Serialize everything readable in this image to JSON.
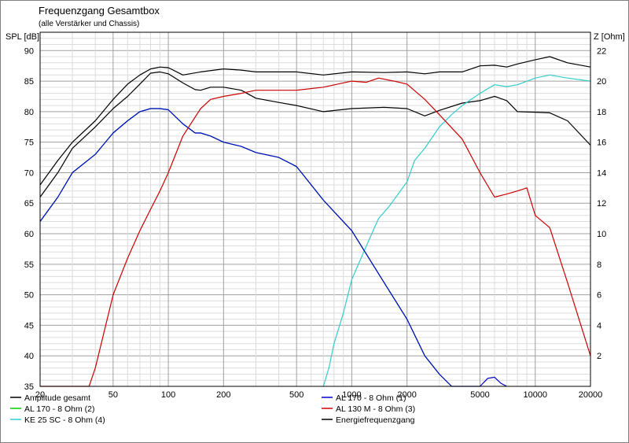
{
  "chart_data": {
    "type": "line",
    "title": "Frequenzgang Gesamtbox",
    "subtitle": "(alle Verstärker und Chassis)",
    "xscale": "log",
    "xlim": [
      20,
      20000
    ],
    "ylim_left": [
      35,
      93
    ],
    "ylim_right": [
      0,
      23.2
    ],
    "ylabel_left": "SPL [dB]",
    "ylabel_right": "Z [Ohm]",
    "grid": true,
    "legend_position": "bottom",
    "x_ticks": [
      "20",
      "50",
      "100",
      "200",
      "500",
      "1000",
      "2000",
      "5000",
      "10000",
      "20000"
    ],
    "x_tick_values": [
      20,
      50,
      100,
      200,
      500,
      1000,
      2000,
      5000,
      10000,
      20000
    ],
    "y_ticks_left": [
      35,
      40,
      45,
      50,
      55,
      60,
      65,
      70,
      75,
      80,
      85,
      90
    ],
    "y_ticks_right": [
      2,
      4,
      6,
      8,
      10,
      12,
      14,
      16,
      18,
      20,
      22
    ],
    "series": [
      {
        "name": "Amplitude gesamt",
        "color": "#000000",
        "side": "left",
        "x": [
          20,
          25,
          30,
          40,
          50,
          60,
          70,
          80,
          90,
          100,
          120,
          140,
          150,
          170,
          200,
          250,
          300,
          400,
          500,
          700,
          1000,
          1500,
          2000,
          2500,
          3000,
          4000,
          5000,
          6000,
          7000,
          8000,
          10000,
          12000,
          15000,
          20000
        ],
        "y": [
          66,
          70,
          74,
          77.5,
          80.5,
          82.5,
          84.5,
          86.3,
          86.5,
          86.2,
          84.7,
          83.6,
          83.5,
          84,
          84,
          83.5,
          82.2,
          81.5,
          81,
          80,
          80.5,
          80.7,
          80.5,
          79.3,
          80.2,
          81.4,
          81.8,
          82.5,
          81.8,
          80,
          79.9,
          79.8,
          78.5,
          74.5
        ]
      },
      {
        "name": "AL 170 - 8 Ohm (2)",
        "color": "#00cc00",
        "side": "left",
        "x": [
          20,
          25,
          30,
          40,
          50,
          60,
          70,
          80,
          90,
          100,
          120,
          140,
          150,
          170,
          200,
          250,
          300,
          400,
          500,
          700,
          1000,
          1500,
          2000,
          2500,
          3000,
          3500
        ],
        "y": [
          62,
          66,
          70,
          73,
          76.5,
          78.5,
          80,
          80.5,
          80.5,
          80.3,
          78,
          76.5,
          76.5,
          76,
          75,
          74.3,
          73.3,
          72.5,
          71,
          65.5,
          60.5,
          52,
          46,
          40,
          37,
          35
        ]
      },
      {
        "name": "KE 25 SC - 8 Ohm    (4)",
        "color": "#33cccc",
        "side": "left",
        "x": [
          700,
          750,
          800,
          900,
          1000,
          1200,
          1400,
          1600,
          2000,
          2200,
          2500,
          3000,
          3500,
          4000,
          5000,
          6000,
          7000,
          8000,
          10000,
          12000,
          15000,
          20000
        ],
        "y": [
          35,
          38,
          42,
          47,
          52.5,
          58,
          62.5,
          64.5,
          68.5,
          72,
          74,
          77.5,
          79.5,
          81,
          83,
          84.4,
          84.1,
          84.4,
          85.5,
          86,
          85.5,
          85
        ]
      },
      {
        "name": "AL 170 - 8 Ohm (1)",
        "color": "#0000cc",
        "side": "left",
        "x": [
          20,
          25,
          30,
          40,
          50,
          60,
          70,
          80,
          90,
          100,
          120,
          140,
          150,
          170,
          200,
          250,
          300,
          400,
          500,
          700,
          1000,
          1500,
          2000,
          2500,
          3000,
          3500,
          4000,
          5000,
          5500,
          6000,
          6500,
          7000
        ],
        "y": [
          62,
          66,
          70,
          73,
          76.5,
          78.5,
          80,
          80.5,
          80.5,
          80.3,
          78,
          76.5,
          76.5,
          76,
          75,
          74.3,
          73.3,
          72.5,
          71,
          65.5,
          60.5,
          52,
          46,
          40,
          37,
          35,
          35,
          35,
          36.3,
          36.5,
          35.5,
          35
        ]
      },
      {
        "name": "AL 130 M - 8 Ohm (3)",
        "color": "#cc0000",
        "side": "left",
        "x": [
          20,
          37,
          40,
          50,
          60,
          70,
          80,
          90,
          100,
          120,
          150,
          170,
          200,
          250,
          300,
          400,
          500,
          700,
          1000,
          1200,
          1400,
          1700,
          2000,
          2500,
          3000,
          4000,
          5000,
          6000,
          7000,
          8000,
          9000,
          10000,
          12000,
          15000,
          20000
        ],
        "y": [
          35,
          35,
          38,
          50,
          56,
          60.5,
          64,
          67,
          70,
          76,
          80.5,
          82,
          82.5,
          83,
          83.5,
          83.5,
          83.5,
          84,
          85,
          84.8,
          85.5,
          85,
          84.5,
          82,
          79.5,
          75.5,
          70,
          66,
          66.5,
          67,
          67.5,
          63,
          61,
          52,
          40
        ]
      },
      {
        "name": "Energiefrequenzgang",
        "color": "#000000",
        "side": "left",
        "x": [
          20,
          25,
          30,
          40,
          50,
          60,
          70,
          80,
          90,
          100,
          120,
          150,
          200,
          250,
          300,
          400,
          500,
          700,
          1000,
          1500,
          2000,
          2500,
          3000,
          4000,
          5000,
          6000,
          7000,
          8000,
          10000,
          12000,
          15000,
          20000
        ],
        "y": [
          68,
          72,
          75,
          78.5,
          82,
          84.5,
          86,
          87,
          87.3,
          87.2,
          86,
          86.5,
          87,
          86.8,
          86.5,
          86.5,
          86.5,
          86,
          86.5,
          86.4,
          86.5,
          86.2,
          86.5,
          86.5,
          87.5,
          87.6,
          87.3,
          87.8,
          88.5,
          89,
          88,
          87.3
        ]
      }
    ]
  }
}
